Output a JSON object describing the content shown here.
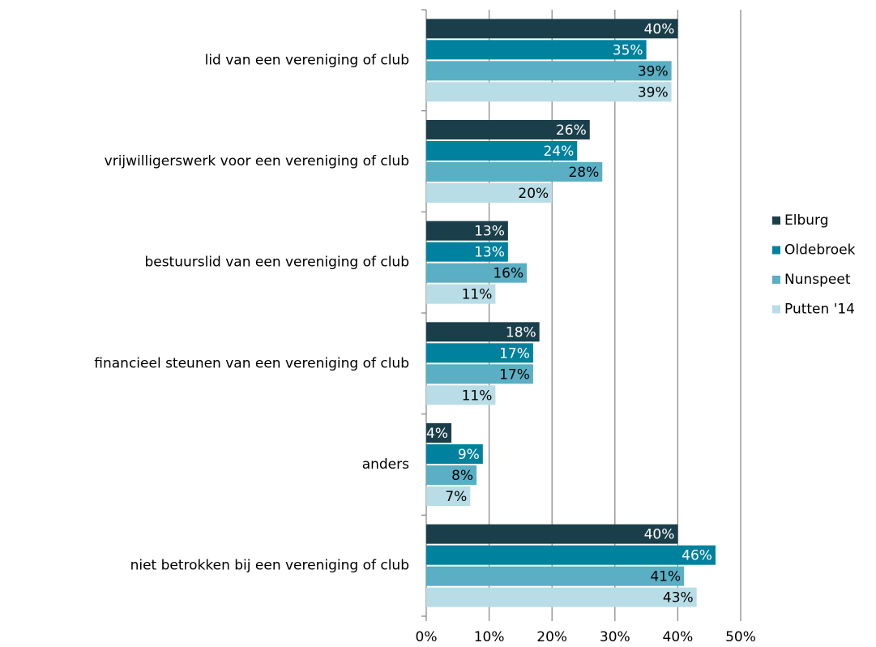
{
  "chart_data": {
    "type": "bar",
    "orientation": "horizontal",
    "categories": [
      "lid van een vereniging of club",
      "vrijwilligerswerk voor een vereniging of club",
      "bestuurslid van een vereniging of club",
      "financieel steunen van een vereniging of club",
      "anders",
      "niet betrokken bij een vereniging of club"
    ],
    "series": [
      {
        "name": "Elburg",
        "color": "#1b3f4a",
        "values": [
          40,
          26,
          13,
          18,
          4,
          40
        ],
        "value_labels": [
          "40%",
          "26%",
          "13%",
          "18%",
          "4%",
          "40%"
        ]
      },
      {
        "name": "Oldebroek",
        "color": "#00819e",
        "values": [
          35,
          24,
          13,
          17,
          9,
          46
        ],
        "value_labels": [
          "35%",
          "24%",
          "13%",
          "17%",
          "9%",
          "46%"
        ]
      },
      {
        "name": "Nunspeet",
        "color": "#5aafc4",
        "values": [
          39,
          28,
          16,
          17,
          8,
          41
        ],
        "value_labels": [
          "39%",
          "28%",
          "16%",
          "17%",
          "8%",
          "41%"
        ]
      },
      {
        "name": "Putten '14",
        "color": "#b8dde6",
        "values": [
          39,
          20,
          11,
          11,
          7,
          43
        ],
        "value_labels": [
          "39%",
          "20%",
          "11%",
          "11%",
          "7%",
          "43%"
        ]
      }
    ],
    "xlim": [
      0,
      50
    ],
    "xticks": [
      {
        "value": 0,
        "label": "0%"
      },
      {
        "value": 10,
        "label": "10%"
      },
      {
        "value": 20,
        "label": "20%"
      },
      {
        "value": 30,
        "label": "30%"
      },
      {
        "value": 40,
        "label": "40%"
      },
      {
        "value": 50,
        "label": "50%"
      }
    ],
    "grid": true,
    "legend": "right"
  }
}
